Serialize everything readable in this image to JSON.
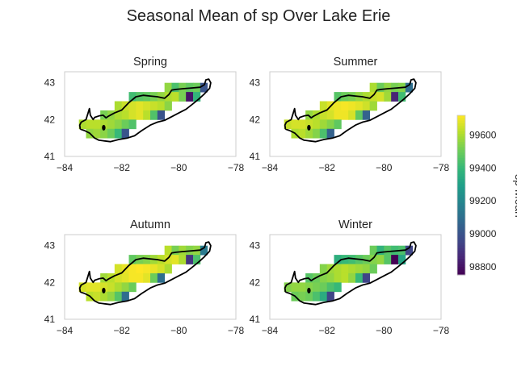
{
  "chart_data": {
    "type": "heatmap",
    "title": "Seasonal Mean of sp Over Lake Erie",
    "xlim": [
      -84,
      -78
    ],
    "ylim": [
      41,
      43.3
    ],
    "x_ticks": [
      -84,
      -82,
      -80,
      -78
    ],
    "y_ticks": [
      41,
      42,
      43
    ],
    "grid": "off",
    "cell_size_deg": 0.25,
    "colormap": "viridis",
    "colorbar": {
      "label": "sp Mean",
      "range": [
        98750,
        99720
      ],
      "ticks": [
        98800,
        99000,
        99200,
        99400,
        99600
      ],
      "placement": "right"
    },
    "panels": [
      {
        "title": "Spring",
        "rows": [
          {
            "lat": 42.875,
            "lon_start": -80.375,
            "values": [
              99560,
              99440,
              99520,
              99480,
              99500,
              99000
            ]
          },
          {
            "lat": 42.625,
            "lon_start": -81.625,
            "values": [
              99420,
              99460,
              99480,
              99520,
              99560,
              99600,
              99620,
              99520,
              98800,
              99380
            ]
          },
          {
            "lat": 42.375,
            "lon_start": -82.125,
            "values": [
              99600,
              99640,
              99660,
              99680,
              99660,
              99640,
              99620,
              99550
            ]
          },
          {
            "lat": 42.125,
            "lon_start": -82.625,
            "values": [
              99520,
              99560,
              99600,
              99620,
              99660,
              99680,
              99620,
              99450,
              99000
            ]
          },
          {
            "lat": 41.875,
            "lon_start": -83.375,
            "values": [
              99600,
              99620,
              99620,
              99600,
              99580,
              99550,
              99500,
              99450
            ]
          },
          {
            "lat": 41.625,
            "lon_start": -83.125,
            "values": [
              99560,
              99580,
              99550,
              99500,
              99400,
              99000
            ]
          }
        ]
      },
      {
        "title": "Summer",
        "rows": [
          {
            "lat": 42.875,
            "lon_start": -80.375,
            "values": [
              99600,
              99500,
              99560,
              99520,
              99540,
              99100
            ]
          },
          {
            "lat": 42.625,
            "lon_start": -81.625,
            "values": [
              99460,
              99500,
              99520,
              99560,
              99600,
              99640,
              99660,
              99580,
              98850,
              99420
            ]
          },
          {
            "lat": 42.375,
            "lon_start": -82.125,
            "values": [
              99640,
              99680,
              99700,
              99710,
              99700,
              99680,
              99650,
              99580
            ]
          },
          {
            "lat": 42.125,
            "lon_start": -82.625,
            "values": [
              99560,
              99600,
              99640,
              99660,
              99700,
              99700,
              99660,
              99480,
              99050
            ]
          },
          {
            "lat": 41.875,
            "lon_start": -83.375,
            "values": [
              99640,
              99660,
              99660,
              99640,
              99620,
              99580,
              99540,
              99480
            ]
          },
          {
            "lat": 41.625,
            "lon_start": -83.125,
            "values": [
              99600,
              99620,
              99580,
              99540,
              99440,
              99050
            ]
          }
        ]
      },
      {
        "title": "Autumn",
        "rows": [
          {
            "lat": 42.875,
            "lon_start": -80.375,
            "values": [
              99620,
              99520,
              99580,
              99540,
              99560,
              99150
            ]
          },
          {
            "lat": 42.625,
            "lon_start": -81.625,
            "values": [
              99480,
              99520,
              99540,
              99580,
              99620,
              99660,
              99680,
              99600,
              98900,
              99440
            ]
          },
          {
            "lat": 42.375,
            "lon_start": -82.125,
            "values": [
              99660,
              99690,
              99710,
              99720,
              99710,
              99690,
              99660,
              99600
            ]
          },
          {
            "lat": 42.125,
            "lon_start": -82.625,
            "values": [
              99580,
              99620,
              99660,
              99680,
              99710,
              99710,
              99680,
              99500,
              99100
            ]
          },
          {
            "lat": 41.875,
            "lon_start": -83.375,
            "values": [
              99660,
              99680,
              99680,
              99660,
              99640,
              99600,
              99560,
              99500
            ]
          },
          {
            "lat": 41.625,
            "lon_start": -83.125,
            "values": [
              99620,
              99640,
              99600,
              99560,
              99460,
              99100
            ]
          }
        ]
      },
      {
        "title": "Winter",
        "rows": [
          {
            "lat": 42.875,
            "lon_start": -80.375,
            "values": [
              99500,
              99380,
              99460,
              99420,
              99440,
              98950
            ]
          },
          {
            "lat": 42.625,
            "lon_start": -81.625,
            "values": [
              99360,
              99400,
              99420,
              99460,
              99500,
              99540,
              99560,
              99460,
              98750,
              99320
            ]
          },
          {
            "lat": 42.375,
            "lon_start": -82.125,
            "values": [
              99540,
              99580,
              99600,
              99620,
              99600,
              99580,
              99560,
              99500
            ]
          },
          {
            "lat": 42.125,
            "lon_start": -82.625,
            "values": [
              99460,
              99500,
              99540,
              99560,
              99600,
              99620,
              99560,
              99400,
              98950
            ]
          },
          {
            "lat": 41.875,
            "lon_start": -83.375,
            "values": [
              99540,
              99560,
              99560,
              99540,
              99520,
              99500,
              99440,
              99400
            ]
          },
          {
            "lat": 41.625,
            "lon_start": -83.125,
            "values": [
              99500,
              99520,
              99500,
              99440,
              99350,
              98950
            ]
          }
        ]
      }
    ]
  }
}
